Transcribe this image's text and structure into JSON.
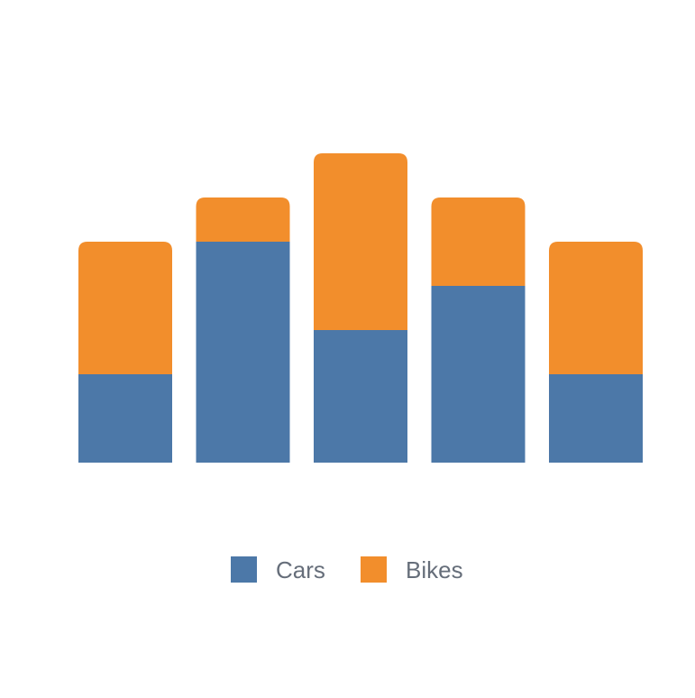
{
  "chart_data": {
    "type": "bar",
    "stacked": true,
    "categories": [
      "",
      "",
      "",
      "",
      ""
    ],
    "series": [
      {
        "name": "Cars",
        "color": "#4c78a8",
        "values": [
          2,
          5,
          3,
          4,
          2
        ]
      },
      {
        "name": "Bikes",
        "color": "#f28e2c",
        "values": [
          3,
          1,
          4,
          2,
          3
        ]
      }
    ],
    "title": "",
    "xlabel": "",
    "ylabel": "",
    "ylim": [
      0,
      7
    ],
    "grid": false,
    "legend_position": "bottom-center"
  }
}
